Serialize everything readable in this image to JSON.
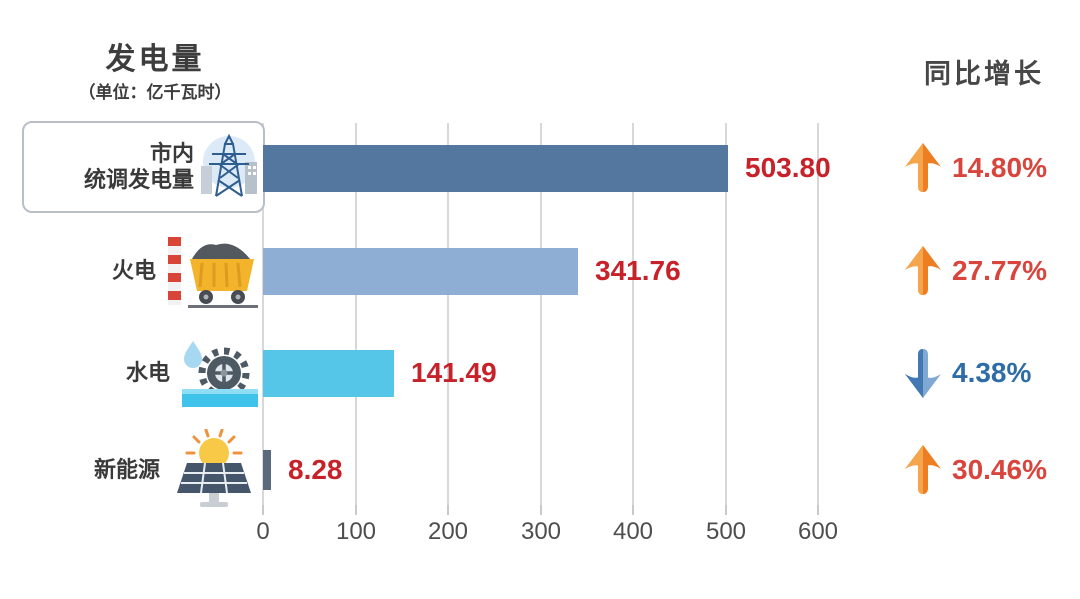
{
  "header": {
    "title": "发电量",
    "unit": "（单位：亿千瓦时）",
    "growth_title": "同比增长"
  },
  "chart_data": {
    "type": "bar",
    "orientation": "horizontal",
    "title": "发电量（单位：亿千瓦时）",
    "categories": [
      "市内统调发电量",
      "火电",
      "水电",
      "新能源"
    ],
    "values": [
      503.8,
      341.76,
      141.49,
      8.28
    ],
    "series": [
      {
        "name": "发电量(亿千瓦时)",
        "values": [
          503.8,
          341.76,
          141.49,
          8.28
        ]
      },
      {
        "name": "同比增长(%)",
        "values": [
          14.8,
          27.77,
          -4.38,
          30.46
        ]
      }
    ],
    "x_ticks": [
      0,
      100,
      200,
      300,
      400,
      500,
      600
    ],
    "x_tick_labels": [
      "0",
      "100",
      "200",
      "300",
      "400",
      "500",
      "600"
    ],
    "xlim": [
      0,
      640
    ],
    "grid": true,
    "legend": false
  },
  "rows": [
    {
      "label": "市内统调发电量",
      "line1": "市内",
      "line2": "统调发电量",
      "icon": "transmission-tower-icon",
      "value": 503.8,
      "value_label": "503.80",
      "growth_label": "14.80%",
      "direction": "up",
      "bar_color": "#53779E"
    },
    {
      "label": "火电",
      "icon": "coal-cart-icon",
      "value": 341.76,
      "value_label": "341.76",
      "growth_label": "27.77%",
      "direction": "up",
      "bar_color": "#8FAED3"
    },
    {
      "label": "水电",
      "icon": "water-wheel-icon",
      "value": 141.49,
      "value_label": "141.49",
      "growth_label": "4.38%",
      "direction": "down",
      "bar_color": "#55C5E8"
    },
    {
      "label": "新能源",
      "icon": "solar-panel-icon",
      "value": 8.28,
      "value_label": "8.28",
      "growth_label": "30.46%",
      "direction": "up",
      "bar_color": "#5A6A7B"
    }
  ],
  "colors": {
    "value_text": "#C72129",
    "pct_up": "#D9453C",
    "pct_down": "#2E6CA8",
    "arrow_up_light": "#F5A54B",
    "arrow_up_dark": "#EE7E22",
    "arrow_down_light": "#7FA9D2",
    "arrow_down_dark": "#4379B2",
    "grid": "#D8D8D8"
  }
}
